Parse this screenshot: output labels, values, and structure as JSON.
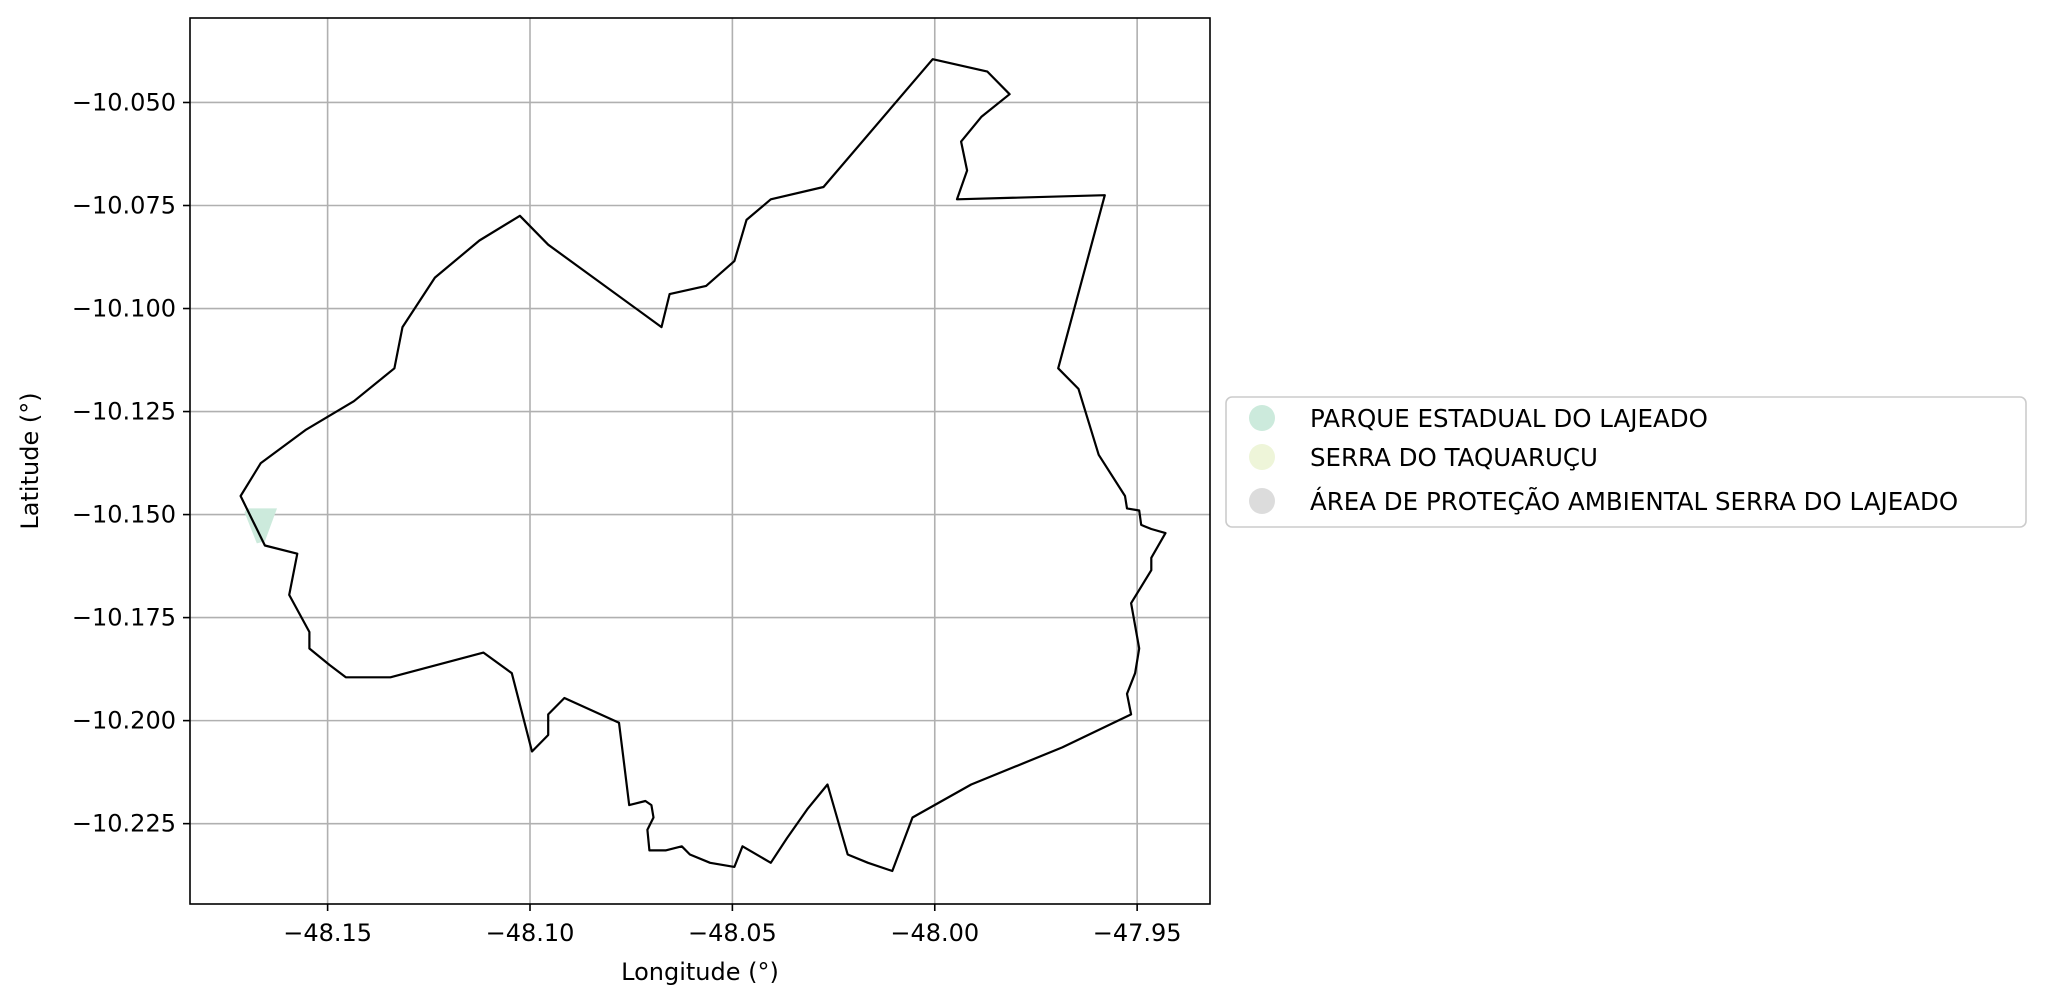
{
  "chart_data": {
    "type": "map",
    "xlabel": "Longitude (°)",
    "ylabel": "Latitude (°)",
    "xlim": [
      -48.184,
      -47.932
    ],
    "ylim": [
      -10.2445,
      -10.0295
    ],
    "grid": true,
    "x_ticks": [
      {
        "value": -48.15,
        "label": "−48.15"
      },
      {
        "value": -48.1,
        "label": "−48.10"
      },
      {
        "value": -48.05,
        "label": "−48.05"
      },
      {
        "value": -48.0,
        "label": "−48.00"
      },
      {
        "value": -47.95,
        "label": "−47.95"
      }
    ],
    "y_ticks": [
      {
        "value": -10.05,
        "label": "−10.050"
      },
      {
        "value": -10.075,
        "label": "−10.075"
      },
      {
        "value": -10.1,
        "label": "−10.100"
      },
      {
        "value": -10.125,
        "label": "−10.125"
      },
      {
        "value": -10.15,
        "label": "−10.150"
      },
      {
        "value": -10.175,
        "label": "−10.175"
      },
      {
        "value": -10.2,
        "label": "−10.200"
      },
      {
        "value": -10.225,
        "label": "−10.225"
      }
    ],
    "boundary": [
      [
        -48.0005,
        -10.0395
      ],
      [
        -47.987,
        -10.0425
      ],
      [
        -47.9815,
        -10.048
      ],
      [
        -47.9885,
        -10.0535
      ],
      [
        -47.9935,
        -10.0595
      ],
      [
        -47.992,
        -10.0665
      ],
      [
        -47.9945,
        -10.0735
      ],
      [
        -47.958,
        -10.0725
      ],
      [
        -47.9695,
        -10.1145
      ],
      [
        -47.9645,
        -10.1195
      ],
      [
        -47.9595,
        -10.1355
      ],
      [
        -47.953,
        -10.1455
      ],
      [
        -47.9525,
        -10.1485
      ],
      [
        -47.9495,
        -10.149
      ],
      [
        -47.949,
        -10.1525
      ],
      [
        -47.9465,
        -10.1535
      ],
      [
        -47.943,
        -10.1545
      ],
      [
        -47.9465,
        -10.1605
      ],
      [
        -47.9465,
        -10.1635
      ],
      [
        -47.9515,
        -10.1715
      ],
      [
        -47.9495,
        -10.1825
      ],
      [
        -47.9505,
        -10.1885
      ],
      [
        -47.9525,
        -10.1935
      ],
      [
        -47.9515,
        -10.1985
      ],
      [
        -47.9685,
        -10.2065
      ],
      [
        -47.991,
        -10.2155
      ],
      [
        -48.0055,
        -10.2235
      ],
      [
        -48.0105,
        -10.2365
      ],
      [
        -48.0165,
        -10.2345
      ],
      [
        -48.0215,
        -10.2325
      ],
      [
        -48.0265,
        -10.2155
      ],
      [
        -48.0315,
        -10.2215
      ],
      [
        -48.0365,
        -10.2285
      ],
      [
        -48.0405,
        -10.2345
      ],
      [
        -48.0475,
        -10.2305
      ],
      [
        -48.0495,
        -10.2355
      ],
      [
        -48.0555,
        -10.2345
      ],
      [
        -48.0605,
        -10.2325
      ],
      [
        -48.0625,
        -10.2305
      ],
      [
        -48.0665,
        -10.2315
      ],
      [
        -48.0705,
        -10.2315
      ],
      [
        -48.071,
        -10.2265
      ],
      [
        -48.0695,
        -10.2235
      ],
      [
        -48.07,
        -10.2205
      ],
      [
        -48.0715,
        -10.2195
      ],
      [
        -48.0755,
        -10.2205
      ],
      [
        -48.077,
        -10.2085
      ],
      [
        -48.078,
        -10.2005
      ],
      [
        -48.0915,
        -10.1945
      ],
      [
        -48.0955,
        -10.1985
      ],
      [
        -48.0955,
        -10.2035
      ],
      [
        -48.0995,
        -10.2075
      ],
      [
        -48.1045,
        -10.1885
      ],
      [
        -48.1115,
        -10.1835
      ],
      [
        -48.1345,
        -10.1895
      ],
      [
        -48.1455,
        -10.1895
      ],
      [
        -48.1495,
        -10.1865
      ],
      [
        -48.1545,
        -10.1825
      ],
      [
        -48.1545,
        -10.1785
      ],
      [
        -48.1595,
        -10.1695
      ],
      [
        -48.1575,
        -10.1595
      ],
      [
        -48.1655,
        -10.1575
      ],
      [
        -48.1715,
        -10.1455
      ],
      [
        -48.1665,
        -10.1375
      ],
      [
        -48.1555,
        -10.1295
      ],
      [
        -48.1435,
        -10.1225
      ],
      [
        -48.1335,
        -10.1145
      ],
      [
        -48.1315,
        -10.1045
      ],
      [
        -48.1235,
        -10.0925
      ],
      [
        -48.1125,
        -10.0835
      ],
      [
        -48.1025,
        -10.0775
      ],
      [
        -48.0955,
        -10.0845
      ],
      [
        -48.0675,
        -10.1045
      ],
      [
        -48.0655,
        -10.0965
      ],
      [
        -48.0565,
        -10.0945
      ],
      [
        -48.0495,
        -10.0885
      ],
      [
        -48.0465,
        -10.0785
      ],
      [
        -48.0405,
        -10.0735
      ],
      [
        -48.0275,
        -10.0705
      ],
      [
        -48.0005,
        -10.0395
      ]
    ],
    "areas": [
      {
        "name": "PARQUE ESTADUAL DO LAJEADO",
        "color": "#cceadc",
        "polygon": [
          [
            -48.17,
            -10.1485
          ],
          [
            -48.1625,
            -10.1485
          ],
          [
            -48.1655,
            -10.1565
          ],
          [
            -48.1675,
            -10.157
          ],
          [
            -48.1705,
            -10.1495
          ]
        ]
      }
    ],
    "legend": {
      "placement": "right-center",
      "entries": [
        {
          "label": "PARQUE ESTADUAL DO LAJEADO",
          "color": "#cceadc"
        },
        {
          "label": "SERRA DO TAQUARUÇU",
          "color": "#eef5d9"
        },
        {
          "label": "ÁREA DE PROTEÇÃO AMBIENTAL SERRA DO LAJEADO",
          "color": "#dcdcdc"
        }
      ]
    },
    "colors": {
      "boundary": "#000000",
      "grid": "#b0b0b0",
      "frame": "#000000"
    }
  }
}
